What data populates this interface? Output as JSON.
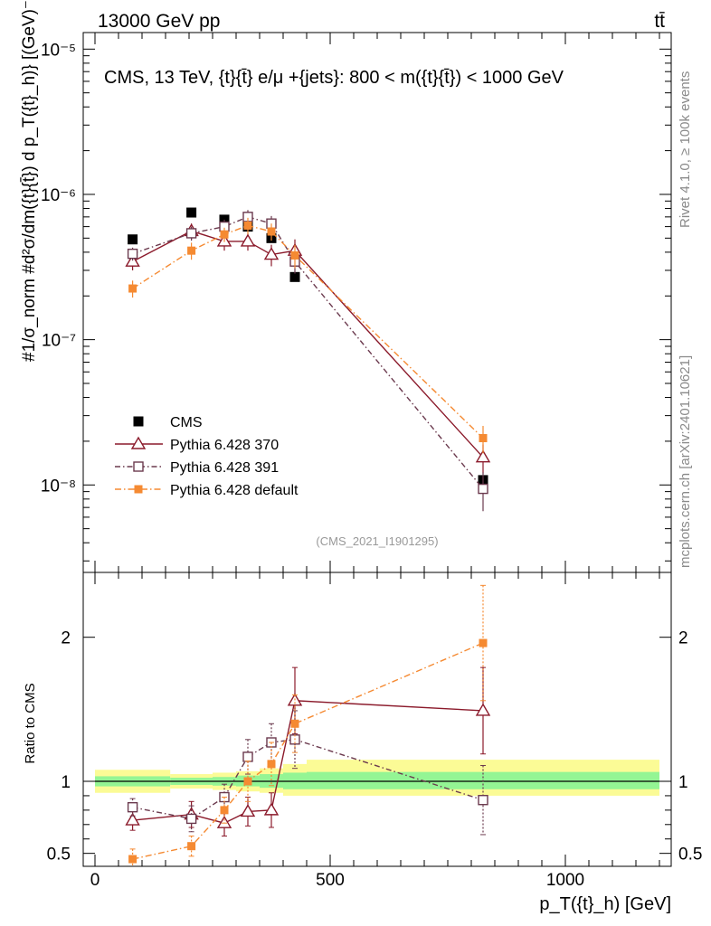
{
  "header": {
    "left": "13000 GeV pp",
    "right": "tt̄"
  },
  "side_labels": {
    "rivet": "Rivet 4.1.0, ≥ 100k events",
    "mcplots": "mcplots.cern.ch [arXiv:2401.10621]"
  },
  "chart_data": [
    {
      "id": "main",
      "type": "scatter",
      "title": "CMS, 13 TeV, {t}{t̄} e/μ +{jets}: 800 < m({t}{t̄}) < 1000 GeV",
      "ylabel": "#1/σ_norm #d²σ/dm({t}{t̄}) d p_T({t}_h)} [(GeV)⁻²]",
      "yscale": "log",
      "ylim": [
        2.5e-09,
        1.3e-05
      ],
      "xlim": [
        -25,
        1225
      ],
      "ytick_labels": [
        "10⁻⁸",
        "10⁻⁷",
        "10⁻⁶",
        "10⁻⁵"
      ],
      "watermark": "(CMS_2021_I1901295)",
      "legend": [
        "CMS",
        "Pythia 6.428 370",
        "Pythia 6.428 391",
        "Pythia 6.428 default"
      ],
      "series": [
        {
          "name": "CMS",
          "color": "#000000",
          "marker": "filled-square",
          "x": [
            80,
            205,
            275,
            325,
            375,
            425,
            825
          ],
          "y": [
            4.9e-07,
            7.5e-07,
            6.7e-07,
            6e-07,
            5e-07,
            2.7e-07,
            1.08e-08
          ],
          "err": [
            0,
            0,
            0,
            0,
            0,
            0,
            0
          ]
        },
        {
          "name": "Pythia 6.428 370",
          "color": "#8b1a2b",
          "marker": "open-triangle",
          "x": [
            80,
            205,
            275,
            325,
            375,
            425,
            825
          ],
          "y": [
            3.45e-07,
            5.6e-07,
            4.75e-07,
            4.75e-07,
            3.85e-07,
            4.1e-07,
            1.55e-08
          ],
          "err": [
            4.5e-08,
            7e-08,
            6.5e-08,
            6.5e-08,
            6.5e-08,
            8e-08,
            3.5e-09
          ]
        },
        {
          "name": "Pythia 6.428 391",
          "color": "#6b3a4e",
          "marker": "open-square",
          "x": [
            80,
            205,
            275,
            325,
            375,
            425,
            825
          ],
          "y": [
            3.9e-07,
            5.4e-07,
            6e-07,
            7e-07,
            6.3e-07,
            3.45e-07,
            9.4e-09
          ],
          "err": [
            4e-08,
            6e-08,
            7e-08,
            8e-08,
            8e-08,
            6e-08,
            2.8e-09
          ]
        },
        {
          "name": "Pythia 6.428 default",
          "color": "#f58a32",
          "marker": "filled-square-small",
          "x": [
            80,
            205,
            275,
            325,
            375,
            425,
            825
          ],
          "y": [
            2.25e-07,
            4.1e-07,
            5.3e-07,
            6.1e-07,
            5.55e-07,
            3.8e-07,
            2.1e-08
          ],
          "err": [
            3e-08,
            5.5e-08,
            6e-08,
            8e-08,
            7.5e-08,
            7e-08,
            4.5e-09
          ]
        }
      ]
    },
    {
      "id": "ratio",
      "type": "line",
      "ylabel": "Ratio to CMS",
      "xlabel": "p_T({t}_h) [GeV]",
      "ylim": [
        0.41,
        2.45
      ],
      "xlim": [
        -25,
        1225
      ],
      "yticks": [
        0.5,
        1,
        2
      ],
      "ytick_labels": [
        "0.5",
        "1",
        "2"
      ],
      "xticks": [
        0,
        500,
        1000
      ],
      "xtick_labels": [
        "0",
        "500",
        "1000"
      ],
      "bands": [
        {
          "x0": 0,
          "x1": 160,
          "inner": [
            0.965,
            1.035
          ],
          "outer": [
            0.92,
            1.08
          ]
        },
        {
          "x0": 160,
          "x1": 250,
          "inner": [
            0.975,
            1.025
          ],
          "outer": [
            0.95,
            1.05
          ]
        },
        {
          "x0": 250,
          "x1": 300,
          "inner": [
            0.97,
            1.03
          ],
          "outer": [
            0.94,
            1.06
          ]
        },
        {
          "x0": 300,
          "x1": 350,
          "inner": [
            0.965,
            1.04
          ],
          "outer": [
            0.93,
            1.07
          ]
        },
        {
          "x0": 350,
          "x1": 400,
          "inner": [
            0.955,
            1.05
          ],
          "outer": [
            0.92,
            1.09
          ]
        },
        {
          "x0": 400,
          "x1": 450,
          "inner": [
            0.945,
            1.06
          ],
          "outer": [
            0.9,
            1.12
          ]
        },
        {
          "x0": 450,
          "x1": 1200,
          "inner": [
            0.945,
            1.065
          ],
          "outer": [
            0.9,
            1.15
          ]
        }
      ],
      "series": [
        {
          "name": "Pythia 6.428 370",
          "color": "#8b1a2b",
          "marker": "open-triangle",
          "x": [
            80,
            205,
            275,
            325,
            375,
            425,
            825
          ],
          "y": [
            0.73,
            0.77,
            0.71,
            0.79,
            0.8,
            1.56,
            1.49
          ],
          "err": [
            0.07,
            0.09,
            0.09,
            0.1,
            0.12,
            0.23,
            0.3
          ]
        },
        {
          "name": "Pythia 6.428 391",
          "color": "#6b3a4e",
          "marker": "open-square",
          "x": [
            80,
            205,
            275,
            325,
            375,
            425,
            825
          ],
          "y": [
            0.82,
            0.74,
            0.89,
            1.17,
            1.27,
            1.29,
            0.87
          ],
          "err": [
            0.06,
            0.09,
            0.09,
            0.12,
            0.13,
            0.2,
            0.24
          ]
        },
        {
          "name": "Pythia 6.428 default",
          "color": "#f58a32",
          "marker": "filled-square-small",
          "x": [
            80,
            205,
            275,
            325,
            375,
            425,
            825
          ],
          "y": [
            0.46,
            0.55,
            0.8,
            1.0,
            1.12,
            1.4,
            1.96
          ],
          "err": [
            0.07,
            0.07,
            0.09,
            0.14,
            0.15,
            0.2,
            0.4
          ]
        }
      ]
    }
  ]
}
